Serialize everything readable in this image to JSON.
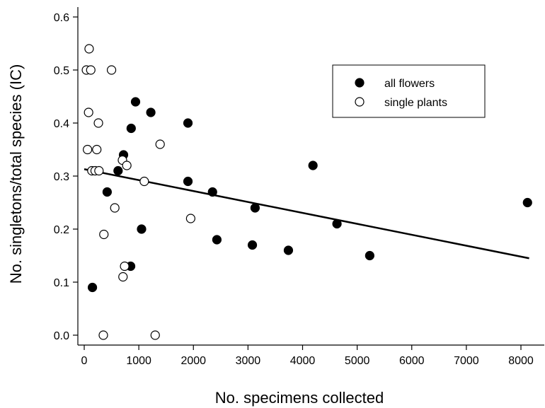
{
  "chart_data": {
    "type": "scatter",
    "title": "",
    "xlabel": "No. specimens collected",
    "ylabel": "No. singletons/total species (IC)",
    "xlim": [
      -100,
      8400
    ],
    "ylim": [
      -0.02,
      0.6
    ],
    "xticks": [
      "0",
      "1000",
      "2000",
      "3000",
      "4000",
      "5000",
      "6000",
      "7000",
      "8000"
    ],
    "yticks": [
      "0.0",
      "0.1",
      "0.2",
      "0.3",
      "0.4",
      "0.5",
      "0.6"
    ],
    "grid": false,
    "legend_position": "top-right",
    "series": [
      {
        "name": "all flowers",
        "marker": "filled-circle",
        "color": "#000000",
        "points": [
          [
            150,
            0.09
          ],
          [
            420,
            0.27
          ],
          [
            620,
            0.31
          ],
          [
            720,
            0.34
          ],
          [
            850,
            0.13
          ],
          [
            860,
            0.39
          ],
          [
            940,
            0.44
          ],
          [
            1050,
            0.2
          ],
          [
            1220,
            0.42
          ],
          [
            1900,
            0.4
          ],
          [
            1900,
            0.29
          ],
          [
            2350,
            0.27
          ],
          [
            2430,
            0.18
          ],
          [
            3080,
            0.17
          ],
          [
            3130,
            0.24
          ],
          [
            3740,
            0.16
          ],
          [
            4190,
            0.32
          ],
          [
            4630,
            0.21
          ],
          [
            5230,
            0.15
          ],
          [
            8120,
            0.25
          ]
        ]
      },
      {
        "name": "single plants",
        "marker": "open-circle",
        "color": "#000000",
        "points": [
          [
            40,
            0.5
          ],
          [
            60,
            0.35
          ],
          [
            80,
            0.42
          ],
          [
            90,
            0.54
          ],
          [
            120,
            0.5
          ],
          [
            140,
            0.31
          ],
          [
            200,
            0.31
          ],
          [
            230,
            0.35
          ],
          [
            260,
            0.4
          ],
          [
            270,
            0.31
          ],
          [
            350,
            0.0
          ],
          [
            360,
            0.19
          ],
          [
            500,
            0.5
          ],
          [
            560,
            0.24
          ],
          [
            700,
            0.33
          ],
          [
            710,
            0.11
          ],
          [
            740,
            0.13
          ],
          [
            780,
            0.32
          ],
          [
            1100,
            0.29
          ],
          [
            1300,
            0.0
          ],
          [
            1390,
            0.36
          ],
          [
            1950,
            0.22
          ]
        ]
      }
    ],
    "trendline": {
      "type": "linear",
      "x": [
        0,
        8150
      ],
      "y": [
        0.313,
        0.145
      ]
    }
  }
}
